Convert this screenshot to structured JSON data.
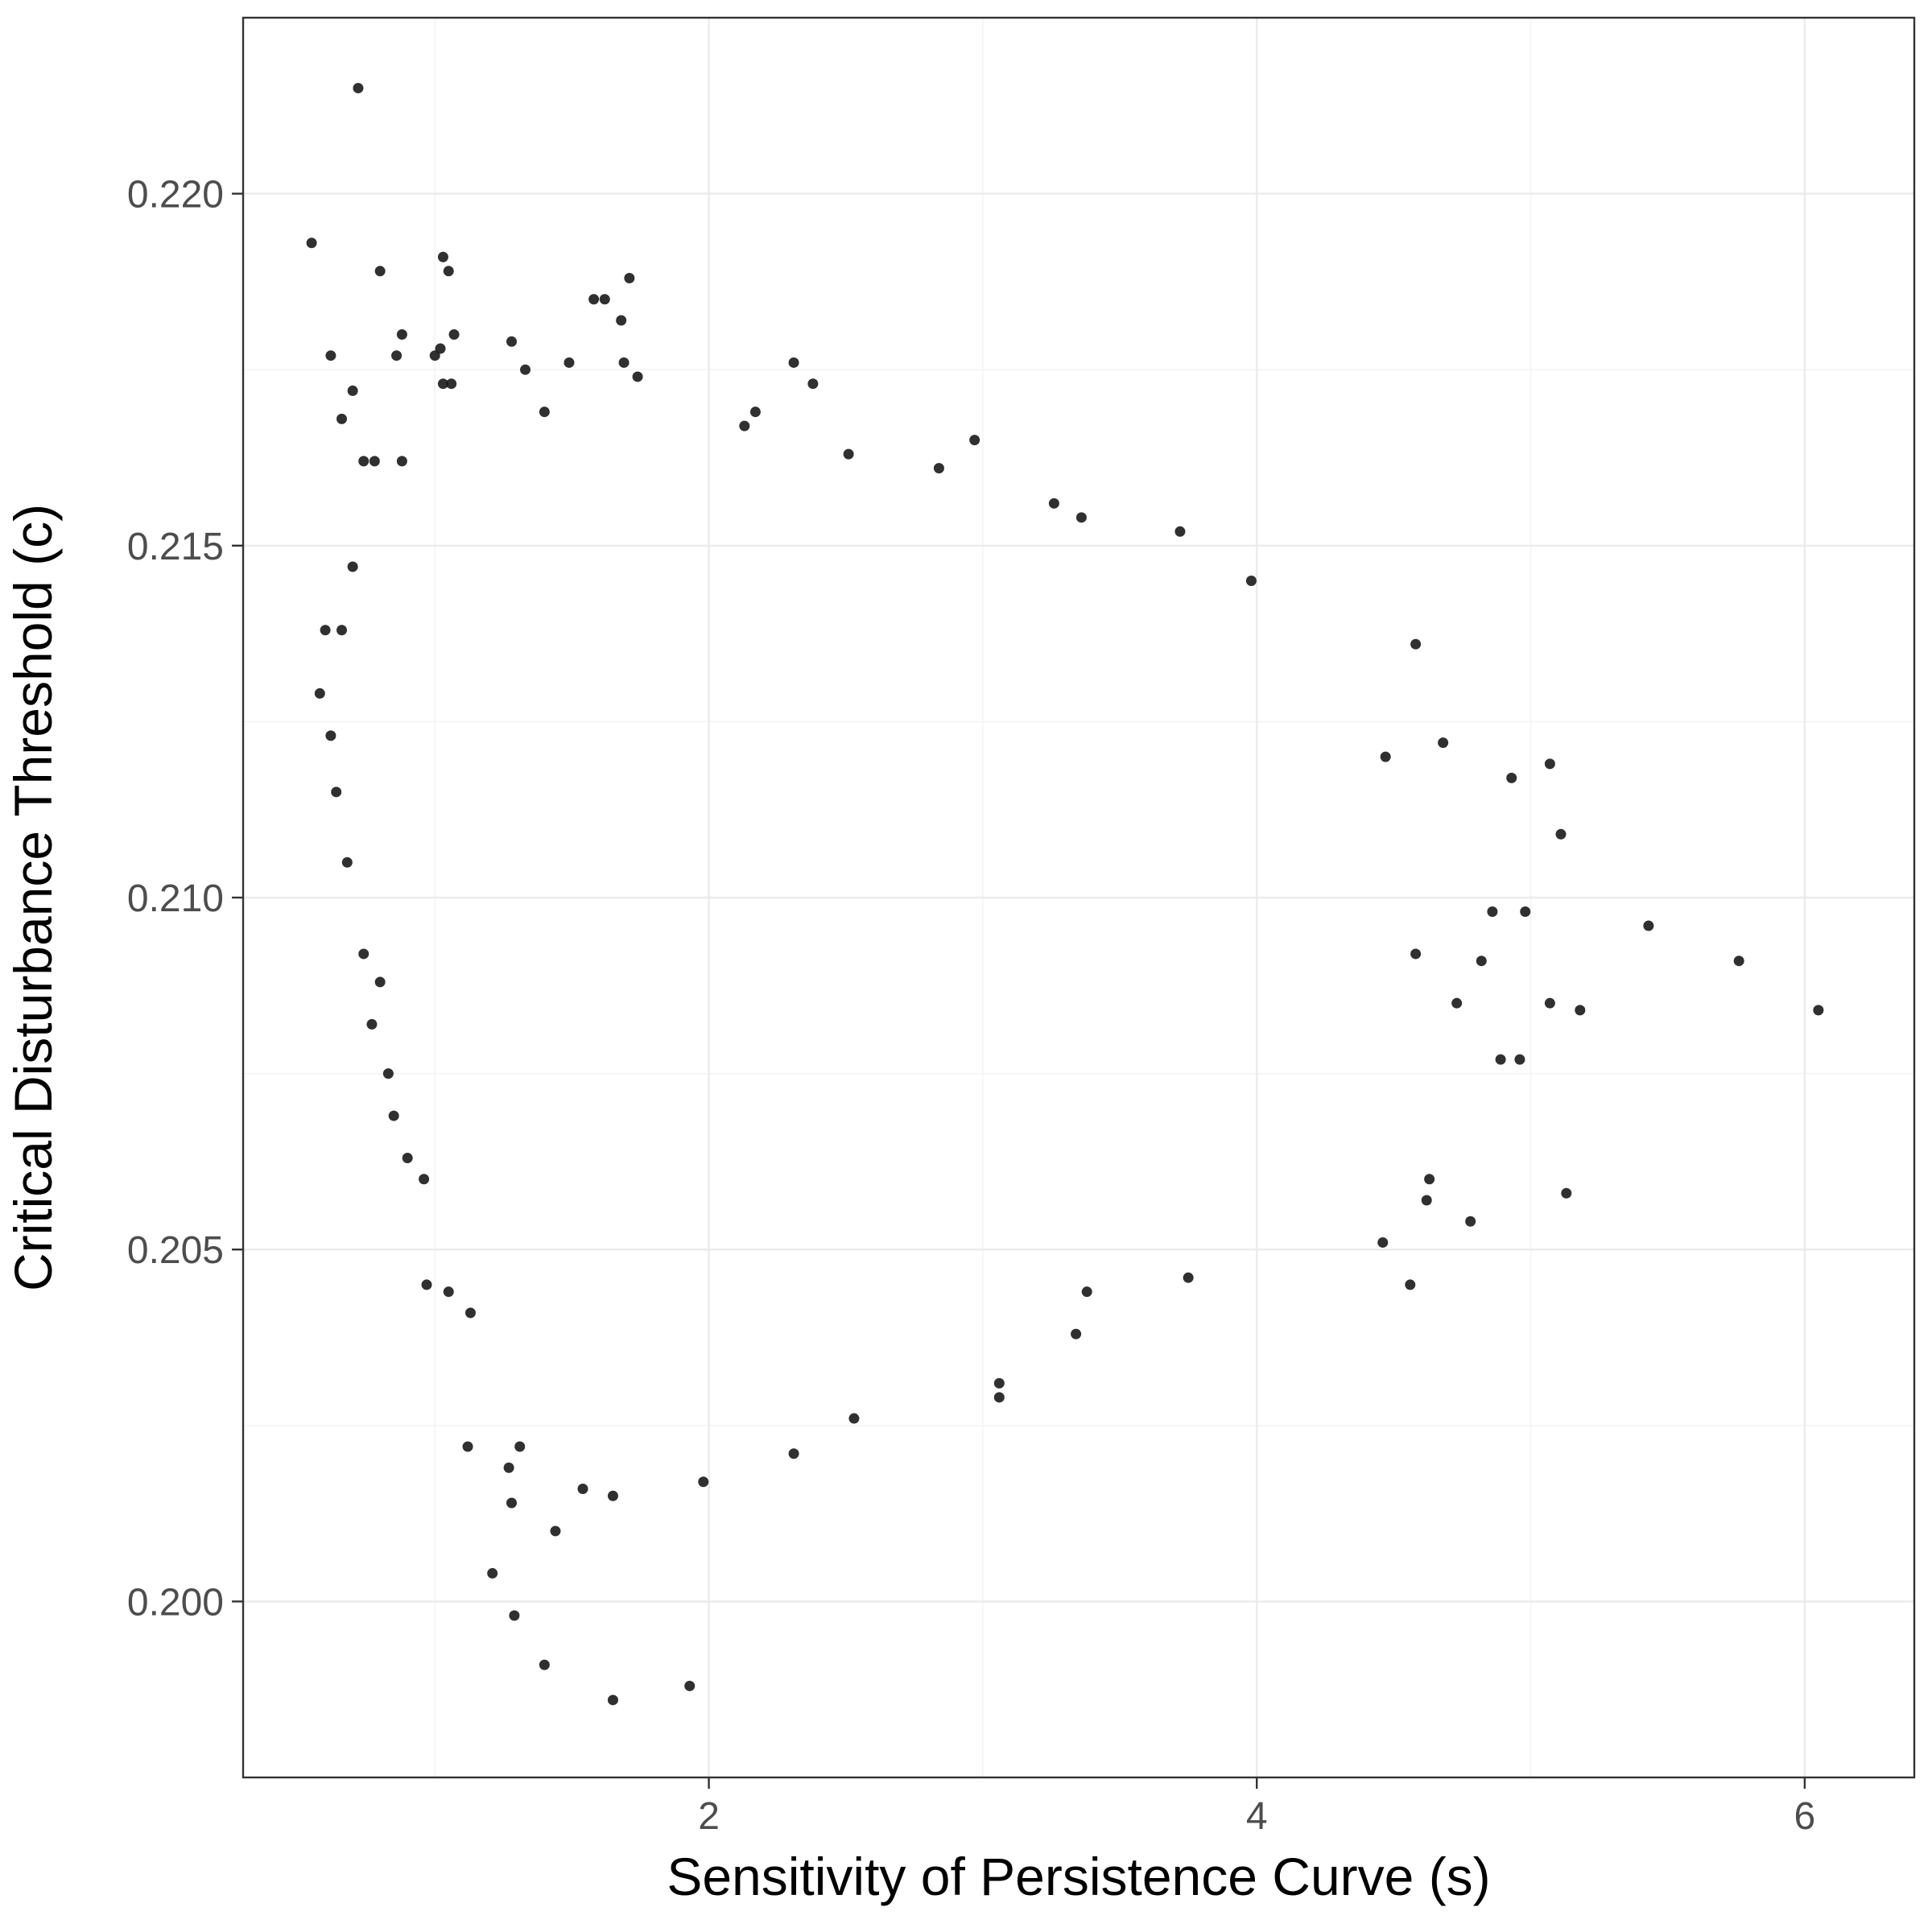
{
  "chart_data": {
    "type": "scatter",
    "title": "",
    "xlabel": "Sensitivity of Persistence Curve (s)",
    "ylabel": "Critical Disturbance Threshold (c)",
    "xlim": [
      0.3,
      6.4
    ],
    "ylim": [
      0.1975,
      0.2225
    ],
    "x_ticks": [
      2,
      4,
      6
    ],
    "x_tick_labels": [
      "2",
      "4",
      "6"
    ],
    "y_ticks": [
      0.2,
      0.205,
      0.21,
      0.215,
      0.22
    ],
    "y_tick_labels": [
      "0.200",
      "0.205",
      "0.210",
      "0.215",
      "0.220"
    ],
    "grid": true,
    "point_color": "#1a1a1a",
    "panel_border_color": "#333333",
    "series": [
      {
        "points": [
          [
            0.72,
            0.2215
          ],
          [
            0.55,
            0.2193
          ],
          [
            1.03,
            0.2191
          ],
          [
            0.8,
            0.2189
          ],
          [
            1.05,
            0.2189
          ],
          [
            1.71,
            0.2188
          ],
          [
            1.58,
            0.2185
          ],
          [
            1.62,
            0.2185
          ],
          [
            1.68,
            0.2182
          ],
          [
            0.88,
            0.218
          ],
          [
            1.07,
            0.218
          ],
          [
            1.28,
            0.2179
          ],
          [
            1.02,
            0.2178
          ],
          [
            1.0,
            0.2177
          ],
          [
            0.62,
            0.2177
          ],
          [
            0.86,
            0.2177
          ],
          [
            1.49,
            0.2176
          ],
          [
            1.69,
            0.2176
          ],
          [
            2.31,
            0.2176
          ],
          [
            1.33,
            0.2175
          ],
          [
            1.74,
            0.2174
          ],
          [
            2.38,
            0.2173
          ],
          [
            1.03,
            0.2173
          ],
          [
            0.7,
            0.2172
          ],
          [
            1.06,
            0.2173
          ],
          [
            2.17,
            0.2169
          ],
          [
            2.13,
            0.2167
          ],
          [
            1.4,
            0.2169
          ],
          [
            0.66,
            0.2168
          ],
          [
            2.51,
            0.2163
          ],
          [
            2.97,
            0.2165
          ],
          [
            0.74,
            0.2162
          ],
          [
            0.78,
            0.2162
          ],
          [
            2.84,
            0.2161
          ],
          [
            0.88,
            0.2162
          ],
          [
            3.36,
            0.2154
          ],
          [
            3.72,
            0.2152
          ],
          [
            3.26,
            0.2156
          ],
          [
            4.58,
            0.2136
          ],
          [
            3.98,
            0.2145
          ],
          [
            5.07,
            0.2119
          ],
          [
            4.93,
            0.2117
          ],
          [
            5.43,
            0.2096
          ],
          [
            5.76,
            0.2091
          ],
          [
            6.05,
            0.2084
          ],
          [
            5.18,
            0.2084
          ],
          [
            5.07,
            0.2085
          ],
          [
            5.11,
            0.2109
          ],
          [
            4.68,
            0.2122
          ],
          [
            4.47,
            0.212
          ],
          [
            4.86,
            0.2098
          ],
          [
            4.98,
            0.2098
          ],
          [
            4.82,
            0.2091
          ],
          [
            4.73,
            0.2085
          ],
          [
            4.58,
            0.2092
          ],
          [
            4.89,
            0.2077
          ],
          [
            4.96,
            0.2077
          ],
          [
            5.13,
            0.2058
          ],
          [
            4.78,
            0.2054
          ],
          [
            4.62,
            0.2057
          ],
          [
            4.63,
            0.206
          ],
          [
            4.56,
            0.2045
          ],
          [
            4.46,
            0.2051
          ],
          [
            3.75,
            0.2046
          ],
          [
            3.38,
            0.2044
          ],
          [
            3.34,
            0.2038
          ],
          [
            3.06,
            0.2031
          ],
          [
            3.06,
            0.2029
          ],
          [
            2.53,
            0.2026
          ],
          [
            2.31,
            0.2021
          ],
          [
            1.98,
            0.2017
          ],
          [
            1.65,
            0.2015
          ],
          [
            1.54,
            0.2016
          ],
          [
            1.31,
            0.2022
          ],
          [
            1.27,
            0.2019
          ],
          [
            1.28,
            0.2014
          ],
          [
            1.12,
            0.2022
          ],
          [
            1.21,
            0.2004
          ],
          [
            1.44,
            0.201
          ],
          [
            1.29,
            0.1998
          ],
          [
            1.4,
            0.1991
          ],
          [
            1.65,
            0.1986
          ],
          [
            1.93,
            0.1988
          ],
          [
            0.97,
            0.2045
          ],
          [
            1.05,
            0.2044
          ],
          [
            1.13,
            0.2041
          ],
          [
            0.9,
            0.2063
          ],
          [
            0.96,
            0.206
          ],
          [
            0.85,
            0.2069
          ],
          [
            0.83,
            0.2075
          ],
          [
            0.77,
            0.2082
          ],
          [
            0.8,
            0.2088
          ],
          [
            0.74,
            0.2092
          ],
          [
            0.68,
            0.2105
          ],
          [
            0.58,
            0.2129
          ],
          [
            0.62,
            0.2123
          ],
          [
            0.6,
            0.2138
          ],
          [
            0.66,
            0.2138
          ],
          [
            0.64,
            0.2115
          ],
          [
            0.7,
            0.2147
          ]
        ]
      }
    ]
  }
}
